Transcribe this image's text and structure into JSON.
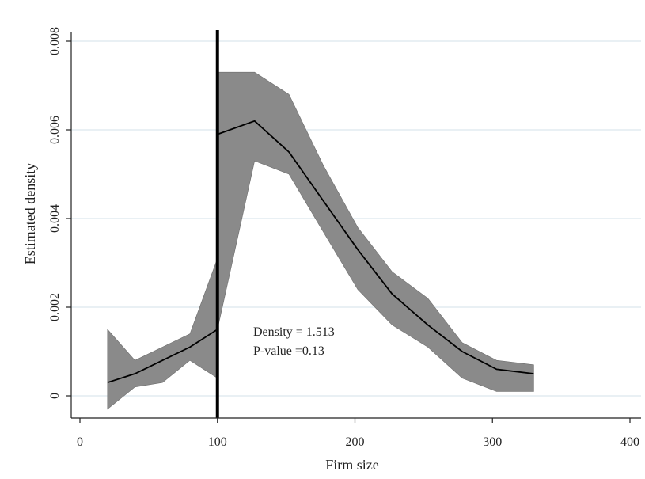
{
  "chart_data": {
    "type": "line",
    "xlabel": "Firm size",
    "ylabel": "Estimated density",
    "xlim": [
      0,
      400
    ],
    "ylim": [
      0,
      0.008
    ],
    "x_ticks": [
      0,
      100,
      200,
      300,
      400
    ],
    "x_tick_labels": [
      "0",
      "100",
      "200",
      "300",
      "400"
    ],
    "y_ticks": [
      0,
      0.002,
      0.004,
      0.006,
      0.008
    ],
    "y_tick_labels": [
      "0",
      "0.002",
      "0.004",
      "0.006",
      "0.008"
    ],
    "grid": "horizontal",
    "cutoff_x": 100,
    "series": [
      {
        "segment": "left",
        "x": [
          20,
          40,
          60,
          80,
          100
        ],
        "y": [
          0.0003,
          0.0005,
          0.0008,
          0.0011,
          0.0015
        ],
        "ci_lower": [
          -0.0003,
          0.0002,
          0.0003,
          0.0008,
          0.0004
        ],
        "ci_upper": [
          0.0015,
          0.0008,
          0.0011,
          0.0014,
          0.0031
        ]
      },
      {
        "segment": "right",
        "x": [
          100,
          127,
          152,
          177,
          202,
          227,
          253,
          278,
          303,
          330
        ],
        "y": [
          0.0059,
          0.0062,
          0.0055,
          0.0044,
          0.0033,
          0.0023,
          0.0016,
          0.001,
          0.0006,
          0.0005
        ],
        "ci_lower": [
          0.0015,
          0.0053,
          0.005,
          0.0037,
          0.0024,
          0.0016,
          0.0011,
          0.0004,
          0.0001,
          0.0001
        ],
        "ci_upper": [
          0.0073,
          0.0073,
          0.0068,
          0.0052,
          0.0038,
          0.0028,
          0.0022,
          0.0012,
          0.0008,
          0.0007
        ]
      }
    ],
    "annotations": {
      "density_label": "Density = 1.513",
      "pvalue_label": "P-value =0.13"
    },
    "colors": {
      "band": "#8a8a8a",
      "line": "#000000",
      "cutoff": "#000000",
      "grid": "#dce8ee",
      "axis": "#222222"
    }
  }
}
